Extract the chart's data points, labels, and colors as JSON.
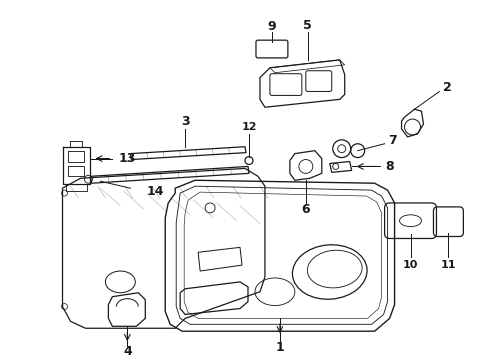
{
  "bg_color": "#ffffff",
  "line_color": "#1a1a1a",
  "fig_width": 4.89,
  "fig_height": 3.6,
  "dpi": 100,
  "label_fontsize": 9,
  "lw": 0.9
}
